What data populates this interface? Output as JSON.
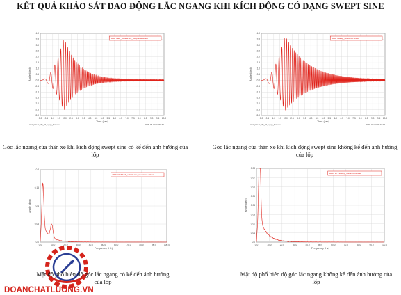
{
  "title": "KẾT QUẢ KHẢO SÁT DAO ĐỘNG LẮC NGANG KHI KÍCH ĐỘNG CÓ DẠNG SWEPT SINE",
  "colors": {
    "signal": "#e0221a",
    "grid": "#d8d8d8",
    "axis": "#555555",
    "logo_red": "#d5241c",
    "logo_blue": "#2b3f95"
  },
  "charts": [
    {
      "id": "time-with-tire",
      "chart_data": {
        "type": "line",
        "xlabel": "Time (sec)",
        "ylabel": "Angle (deg)",
        "xlim": [
          0,
          10
        ],
        "ylim": [
          -3,
          4
        ],
        "x_ticks": [
          "0.0",
          "0.5",
          "1.0",
          "1.5",
          "2.0",
          "2.5",
          "3.0",
          "3.5",
          "4.0",
          "4.5",
          "5.0",
          "5.5",
          "6.0",
          "6.5",
          "7.0",
          "7.5",
          "8.0",
          "8.5",
          "9.0",
          "9.5",
          "10.0"
        ],
        "y_ticks": [
          "-3.0",
          "-2.5",
          "-2.0",
          "-1.5",
          "-1.0",
          "-0.5",
          "0.0",
          "0.5",
          "1.0",
          "1.5",
          "2.0",
          "2.5",
          "3.0",
          "3.5",
          "4.0"
        ],
        "legend_text": "dadr_vehicle.tire_sweptsine.wheel",
        "legend_position": "top-right",
        "footer_left": "Analysis: s_20_01_v_qc_fixstoreil",
        "footer_right": "2015-09-03 12:50:41",
        "peak": 3.6,
        "trough": -2.6,
        "decay": 0.85
      },
      "caption": "Góc lắc ngang của thân xe khi kích động swept sine có kể đến ảnh hưởng của lốp"
    },
    {
      "id": "time-without-tire",
      "chart_data": {
        "type": "line",
        "xlabel": "Time (sec)",
        "ylabel": "Angle (deg)",
        "xlim": [
          0,
          10
        ],
        "ylim": [
          -3,
          4
        ],
        "x_ticks": [
          "0.0",
          "0.5",
          "1.0",
          "1.5",
          "2.0",
          "2.5",
          "3.0",
          "3.5",
          "4.0",
          "4.5",
          "5.0",
          "5.5",
          "6.0",
          "6.5",
          "7.0",
          "7.5",
          "8.0",
          "8.5",
          "9.0",
          "9.5",
          "10.0"
        ],
        "y_ticks": [
          "-3.0",
          "-2.5",
          "-2.0",
          "-1.5",
          "-1.0",
          "-0.5",
          "0.0",
          "0.5",
          "1.0",
          "1.5",
          "2.0",
          "2.5",
          "3.0",
          "3.5",
          "4.0"
        ],
        "legend_text": "sweep_notire.roll.wheel",
        "legend_position": "top-right",
        "footer_left": "Analysis: s_20_01_v_qc_fixstoreil",
        "footer_right": "2015-09-03 15:11:26",
        "peak": 3.8,
        "trough": -2.6,
        "decay": 0.55
      },
      "caption": "Góc lắc ngang của thân xe khi kích động swept sine không kể đến ảnh hưởng của lốp"
    },
    {
      "id": "psd-with-tire",
      "chart_data": {
        "type": "line",
        "xlabel": "Frequency (Hz)",
        "ylabel": "angle (deg)",
        "xlim": [
          0,
          100
        ],
        "ylim": [
          0,
          0.22
        ],
        "x_ticks": [
          "0.0",
          "10.0",
          "20.0",
          "30.0",
          "40.0",
          "50.0",
          "60.0",
          "70.0",
          "80.0",
          "90.0",
          "100.0"
        ],
        "y_ticks": [
          "0.0",
          "0.05",
          "0.1",
          "0.15",
          "0.2"
        ],
        "legend_text": "FFT.dadr_vehicle.tire_sweptsine.wheel",
        "legend_position": "top-right",
        "peak_x": 2,
        "peak": 0.13,
        "secondary_x": 9,
        "secondary": 0.04
      },
      "caption": "Mật độ phổ biên độ góc lắc ngang có kể đến ảnh hưởng của lốp"
    },
    {
      "id": "psd-without-tire",
      "chart_data": {
        "type": "line",
        "xlabel": "Frequency (Hz)",
        "ylabel": "angle (deg)",
        "xlim": [
          0,
          100
        ],
        "ylim": [
          0,
          0.08
        ],
        "x_ticks": [
          "0.0",
          "10.0",
          "20.0",
          "30.0",
          "40.0",
          "50.0",
          "60.0",
          "70.0",
          "80.0",
          "90.0",
          "100.0"
        ],
        "y_ticks": [
          "0.0",
          "0.01",
          "0.02",
          "0.03",
          "0.04",
          "0.05",
          "0.06",
          "0.07",
          "0.08"
        ],
        "legend_text": "FFT.sweep_notire.roll.wheel",
        "legend_position": "top-right",
        "peak_x": 2.5,
        "peak": 0.075
      },
      "caption": "Mật độ phổ biên độ góc lắc ngang không kể đến ảnh hưởng của lốp"
    }
  ],
  "logo": {
    "icon": "gear-logo-icon",
    "text": "DOANCHATLUONG.VN"
  }
}
